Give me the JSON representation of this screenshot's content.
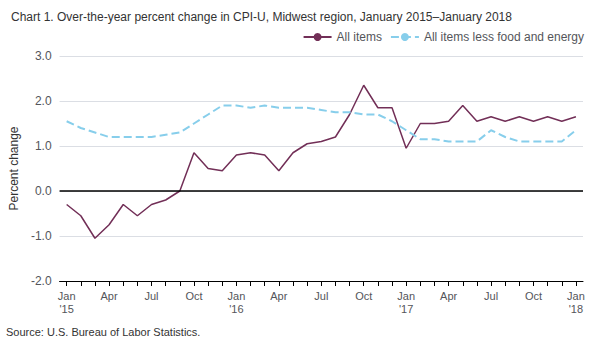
{
  "chart_data": {
    "type": "line",
    "title": "Chart 1. Over-the-year percent change in CPI-U, Midwest region, January 2015–January 2018",
    "ylabel": "Percent change",
    "source": "Source: U.S. Bureau of Labor Statistics.",
    "categories": [
      "Jan\n'15",
      null,
      null,
      "Apr",
      null,
      null,
      "Jul",
      null,
      null,
      "Oct",
      null,
      null,
      "Jan\n'16",
      null,
      null,
      "Apr",
      null,
      null,
      "Jul",
      null,
      null,
      "Oct",
      null,
      null,
      "Jan\n'17",
      null,
      null,
      "Apr",
      null,
      null,
      "Jul",
      null,
      null,
      "Oct",
      null,
      null,
      "Jan\n'18"
    ],
    "series": [
      {
        "name": "All items",
        "color": "#722F57",
        "line_style": "solid",
        "values": [
          -0.3,
          -0.55,
          -1.05,
          -0.75,
          -0.3,
          -0.55,
          -0.3,
          -0.2,
          0.0,
          0.85,
          0.5,
          0.45,
          0.8,
          0.85,
          0.8,
          0.45,
          0.85,
          1.05,
          1.1,
          1.2,
          1.7,
          2.35,
          1.85,
          1.85,
          0.95,
          1.5,
          1.5,
          1.55,
          1.9,
          1.55,
          1.65,
          1.55,
          1.65,
          1.55,
          1.65,
          1.55,
          1.65
        ]
      },
      {
        "name": "All items less food and energy",
        "color": "#87CEEB",
        "line_style": "dashed",
        "values": [
          1.55,
          1.4,
          1.3,
          1.2,
          1.2,
          1.2,
          1.2,
          1.25,
          1.3,
          1.5,
          1.7,
          1.9,
          1.9,
          1.85,
          1.9,
          1.85,
          1.85,
          1.85,
          1.8,
          1.75,
          1.75,
          1.7,
          1.7,
          1.55,
          1.35,
          1.15,
          1.15,
          1.1,
          1.1,
          1.1,
          1.35,
          1.2,
          1.1,
          1.1,
          1.1,
          1.1,
          1.35
        ]
      }
    ],
    "ylim": [
      -2.0,
      3.0
    ],
    "yticks": [
      {
        "value": -2.0,
        "label": "-2.0"
      },
      {
        "value": -1.0,
        "label": "-1.0"
      },
      {
        "value": 0.0,
        "label": "0.0"
      },
      {
        "value": 1.0,
        "label": "1.0"
      },
      {
        "value": 2.0,
        "label": "2.0"
      },
      {
        "value": 3.0,
        "label": "3.0"
      }
    ],
    "grid": true,
    "legend": "upper right"
  }
}
